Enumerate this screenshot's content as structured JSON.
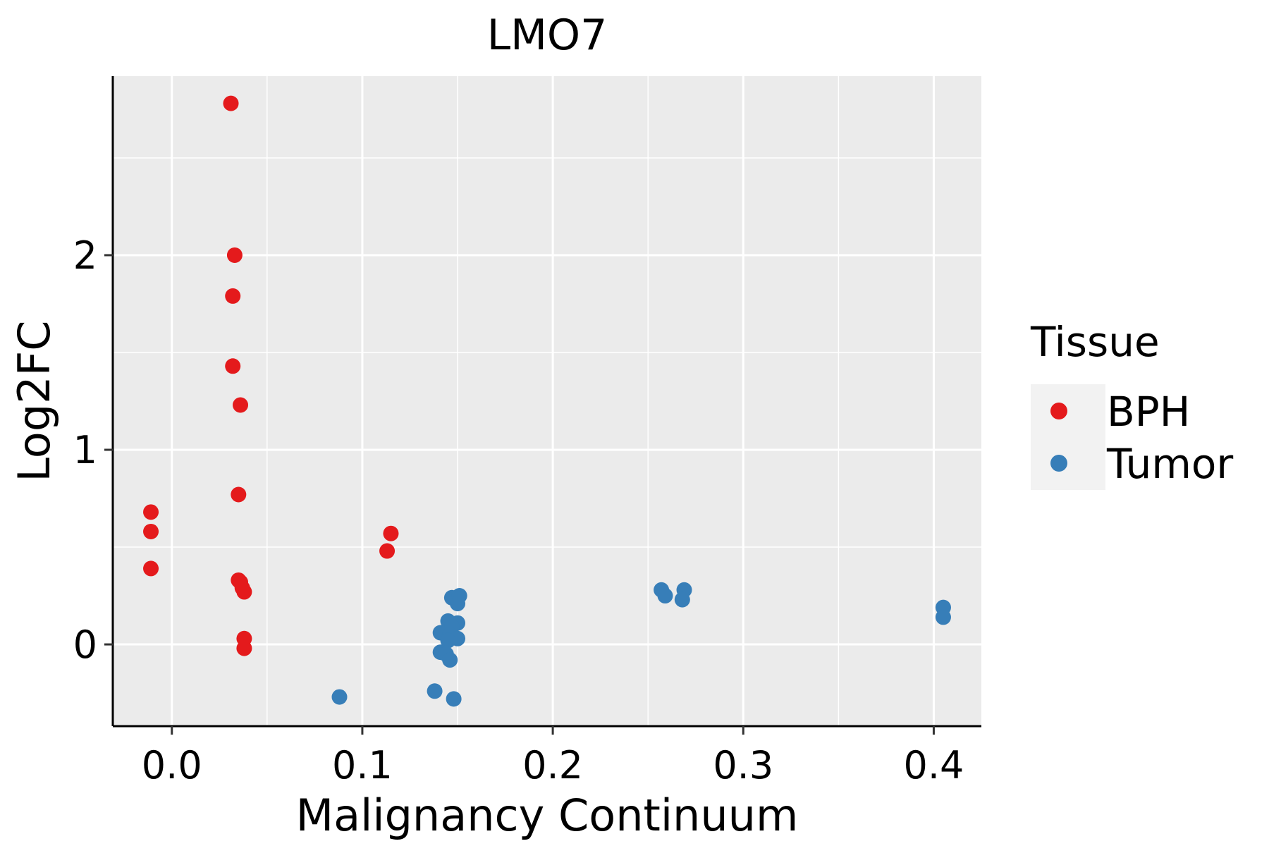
{
  "chart_data": {
    "type": "scatter",
    "title": "LMO7",
    "xlabel": "Malignancy Continuum",
    "ylabel": "Log2FC",
    "xlim": [
      -0.031,
      0.425
    ],
    "ylim": [
      -0.42,
      2.92
    ],
    "x_ticks": [
      0.0,
      0.1,
      0.2,
      0.3,
      0.4
    ],
    "x_tick_labels": [
      "0.0",
      "0.1",
      "0.2",
      "0.3",
      "0.4"
    ],
    "y_ticks": [
      0,
      1,
      2
    ],
    "y_tick_labels": [
      "0",
      "1",
      "2"
    ],
    "x_minor_gridlines": [
      0.05,
      0.15,
      0.25,
      0.35
    ],
    "y_minor_gridlines": [
      0.5,
      1.5,
      2.5
    ],
    "grid": true,
    "legend": {
      "title": "Tissue",
      "position": "right",
      "entries": [
        {
          "name": "BPH",
          "color": "#E41A1C"
        },
        {
          "name": "Tumor",
          "color": "#377EB8"
        }
      ]
    },
    "series": [
      {
        "name": "BPH",
        "color": "#E41A1C",
        "points": [
          {
            "x": 0.031,
            "y": 2.78
          },
          {
            "x": 0.033,
            "y": 2.0
          },
          {
            "x": 0.032,
            "y": 1.79
          },
          {
            "x": 0.032,
            "y": 1.43
          },
          {
            "x": 0.036,
            "y": 1.23
          },
          {
            "x": 0.035,
            "y": 0.77
          },
          {
            "x": -0.011,
            "y": 0.68
          },
          {
            "x": -0.011,
            "y": 0.58
          },
          {
            "x": -0.011,
            "y": 0.39
          },
          {
            "x": 0.035,
            "y": 0.33
          },
          {
            "x": 0.036,
            "y": 0.32
          },
          {
            "x": 0.037,
            "y": 0.29
          },
          {
            "x": 0.038,
            "y": 0.27
          },
          {
            "x": 0.038,
            "y": 0.03
          },
          {
            "x": 0.038,
            "y": -0.02
          },
          {
            "x": 0.115,
            "y": 0.57
          },
          {
            "x": 0.113,
            "y": 0.48
          }
        ]
      },
      {
        "name": "Tumor",
        "color": "#377EB8",
        "points": [
          {
            "x": 0.147,
            "y": 0.24
          },
          {
            "x": 0.151,
            "y": 0.25
          },
          {
            "x": 0.15,
            "y": 0.21
          },
          {
            "x": 0.145,
            "y": 0.12
          },
          {
            "x": 0.15,
            "y": 0.11
          },
          {
            "x": 0.147,
            "y": 0.09
          },
          {
            "x": 0.141,
            "y": 0.06
          },
          {
            "x": 0.146,
            "y": 0.05
          },
          {
            "x": 0.15,
            "y": 0.03
          },
          {
            "x": 0.145,
            "y": 0.02
          },
          {
            "x": 0.141,
            "y": -0.04
          },
          {
            "x": 0.144,
            "y": -0.05
          },
          {
            "x": 0.146,
            "y": -0.08
          },
          {
            "x": 0.138,
            "y": -0.24
          },
          {
            "x": 0.148,
            "y": -0.28
          },
          {
            "x": 0.088,
            "y": -0.27
          },
          {
            "x": 0.257,
            "y": 0.28
          },
          {
            "x": 0.259,
            "y": 0.25
          },
          {
            "x": 0.269,
            "y": 0.28
          },
          {
            "x": 0.268,
            "y": 0.23
          },
          {
            "x": 0.405,
            "y": 0.19
          },
          {
            "x": 0.405,
            "y": 0.14
          }
        ]
      }
    ]
  }
}
